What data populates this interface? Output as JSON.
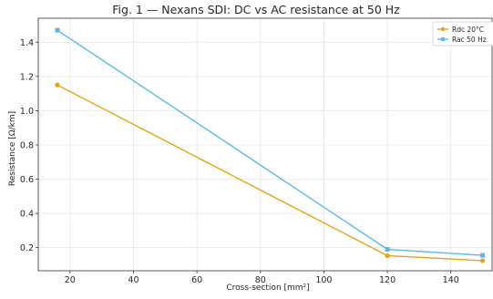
{
  "chart_data": {
    "type": "line",
    "title": "Fig. 1 — Nexans SDI: DC vs AC resistance at 50 Hz",
    "xlabel": "Cross-section [mm²]",
    "ylabel": "Resistance [Ω/km]",
    "x": [
      16,
      120,
      150
    ],
    "xlim": [
      10,
      153
    ],
    "ylim": [
      0.065,
      1.54
    ],
    "xticks": [
      20,
      40,
      60,
      80,
      100,
      120,
      140
    ],
    "yticks": [
      0.2,
      0.4,
      0.6,
      0.8,
      1.0,
      1.2,
      1.4
    ],
    "ytick_labels": [
      "0.2",
      "0.4",
      "0.6",
      "0.8",
      "1.0",
      "1.2",
      "1.4"
    ],
    "grid": true,
    "legend_position": "top-right",
    "series": [
      {
        "name": "Rdc 20°C",
        "values": [
          1.15,
          0.153,
          0.124
        ],
        "color": "#E8A317",
        "marker": "circle"
      },
      {
        "name": "Rac 50 Hz",
        "values": [
          1.47,
          0.19,
          0.155
        ],
        "color": "#5DB8E6",
        "marker": "square"
      }
    ]
  }
}
